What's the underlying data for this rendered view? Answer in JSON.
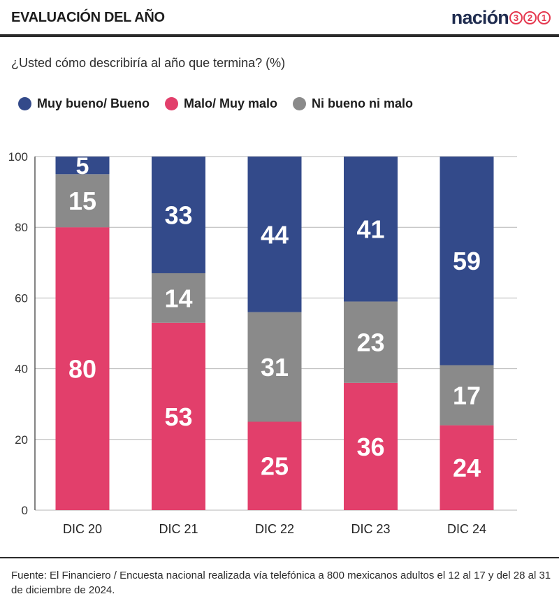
{
  "header": {
    "title": "EVALUACIÓN DEL AÑO",
    "logo": {
      "word": "nación",
      "digits": [
        "3",
        "2",
        "1"
      ]
    }
  },
  "subtitle": "¿Usted cómo describiría al año que termina? (%)",
  "legend": [
    {
      "label": "Muy bueno/ Bueno",
      "color": "#334a8a"
    },
    {
      "label": "Malo/ Muy malo",
      "color": "#e23f6b"
    },
    {
      "label": "Ni bueno ni malo",
      "color": "#8a8a8a"
    }
  ],
  "chart_data": {
    "type": "bar",
    "stacked": true,
    "categories": [
      "DIC 20",
      "DIC 21",
      "DIC 22",
      "DIC 23",
      "DIC 24"
    ],
    "series": [
      {
        "name": "Malo/ Muy malo",
        "color": "#e23f6b",
        "values": [
          80,
          53,
          25,
          36,
          24
        ]
      },
      {
        "name": "Ni bueno ni malo",
        "color": "#8a8a8a",
        "values": [
          15,
          14,
          31,
          23,
          17
        ]
      },
      {
        "name": "Muy bueno/ Bueno",
        "color": "#334a8a",
        "values": [
          5,
          33,
          44,
          41,
          59
        ]
      }
    ],
    "yticks": [
      0,
      20,
      40,
      60,
      80,
      100
    ],
    "ylim": [
      0,
      100
    ],
    "grid": true,
    "legend_position": "top",
    "data_labels": true
  },
  "source": "Fuente: El Financiero / Encuesta nacional realizada vía telefónica a 800 mexicanos adultos el 12 al 17 y del 28 al 31 de diciembre de 2024."
}
